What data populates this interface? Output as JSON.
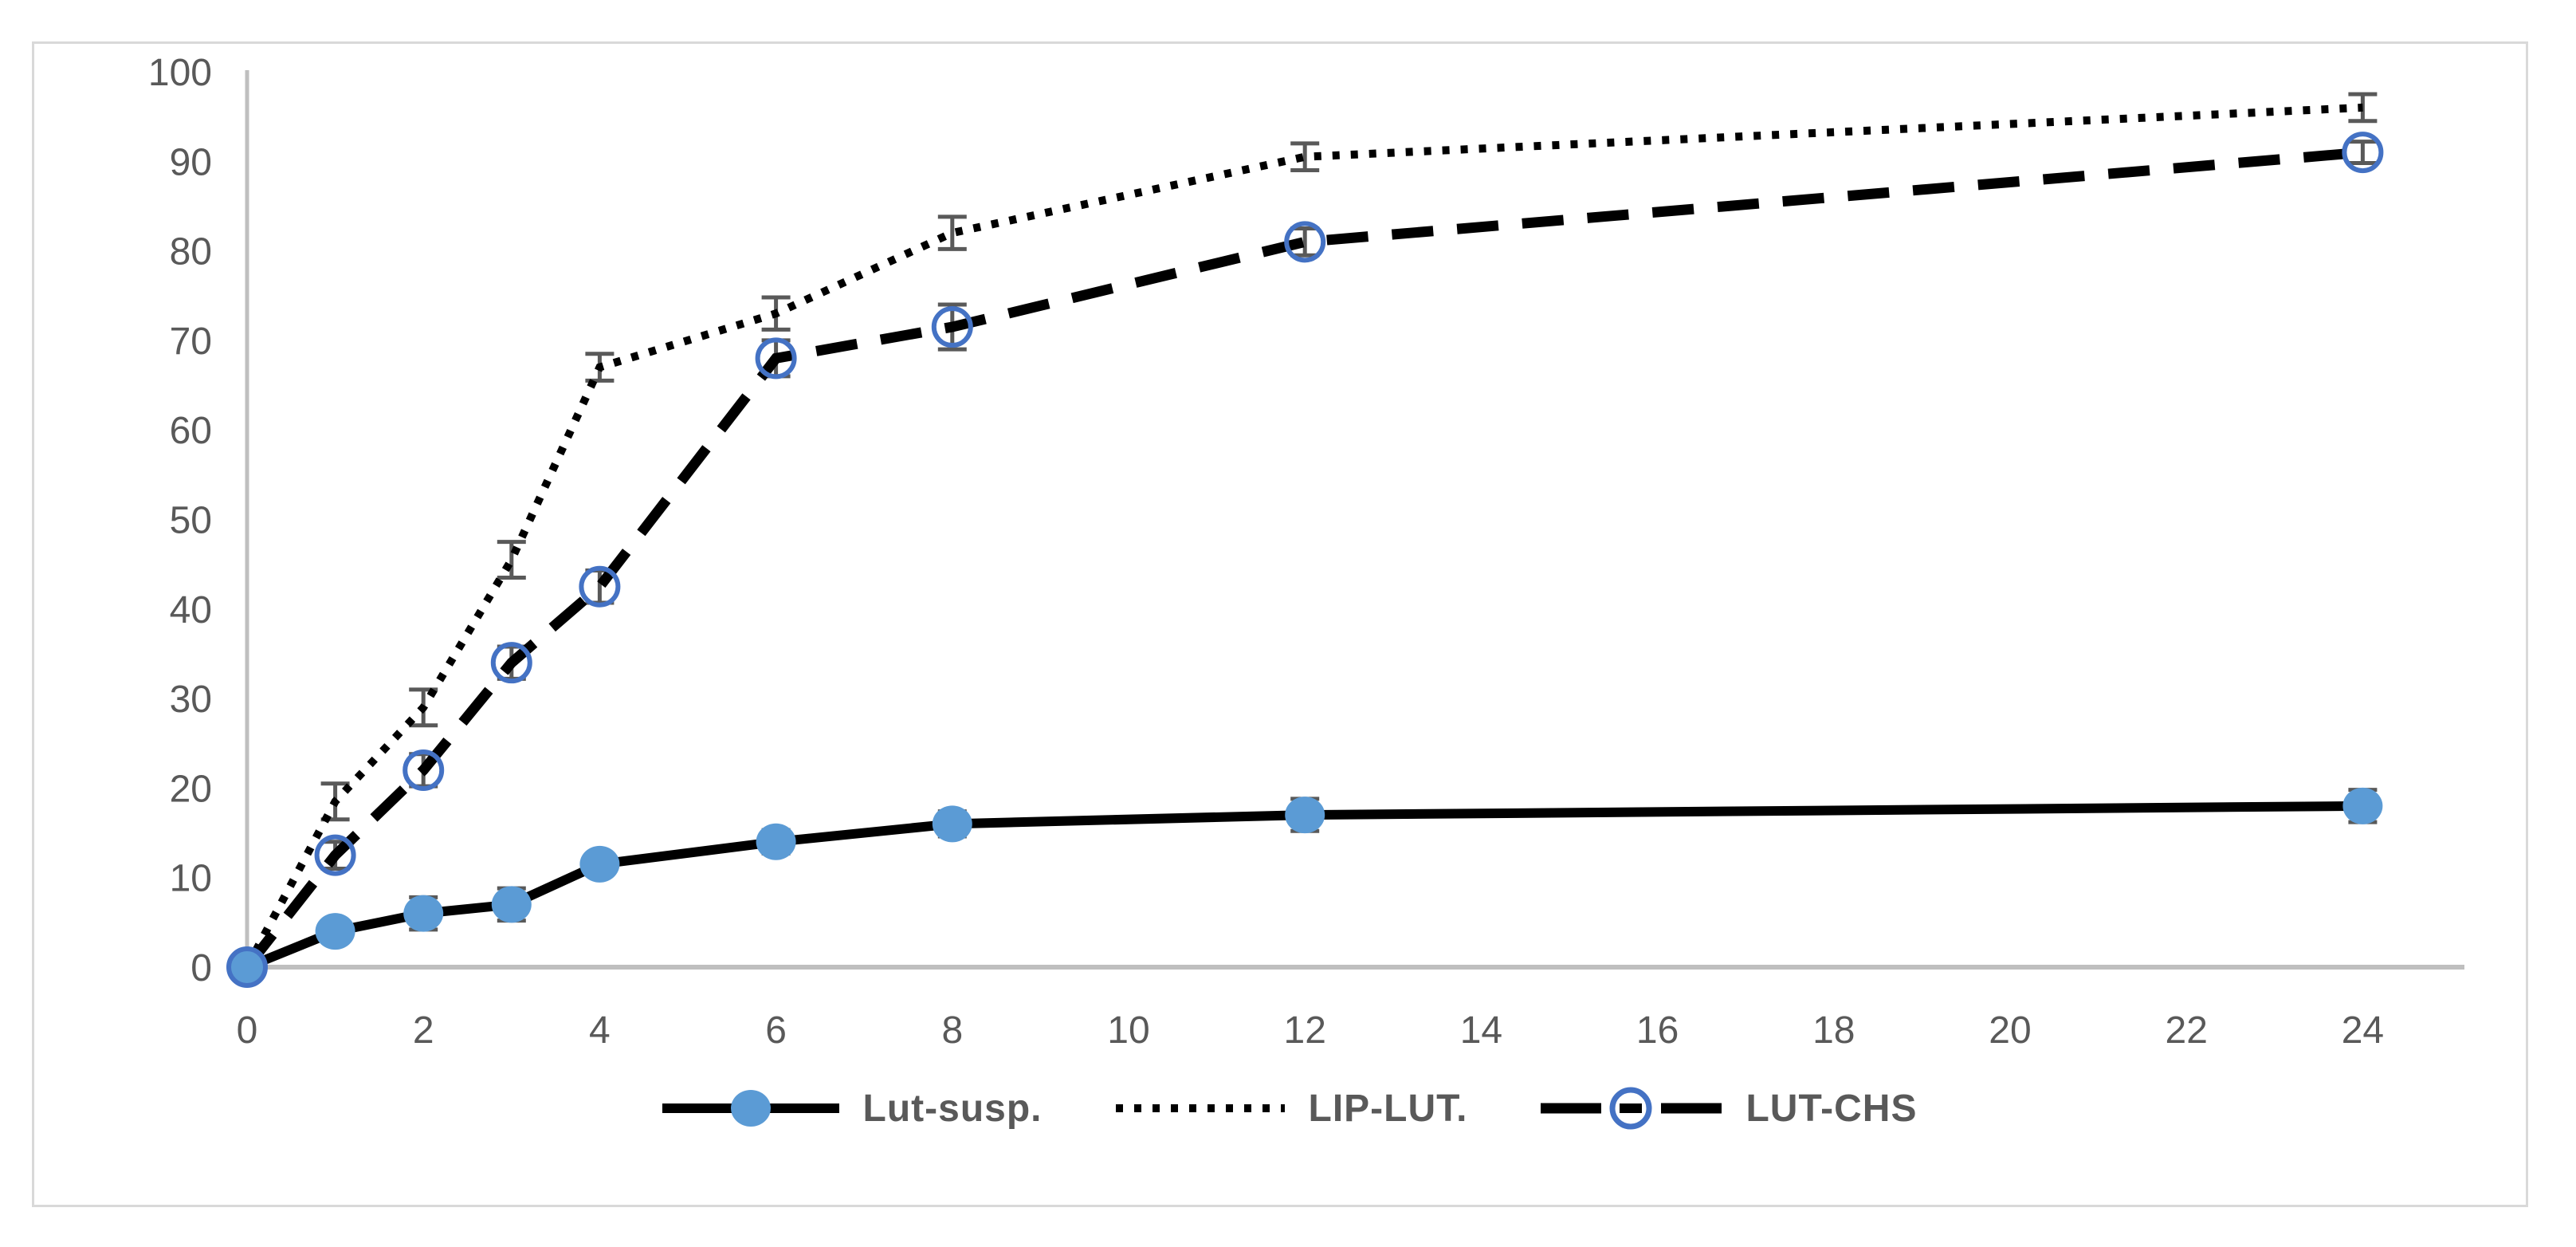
{
  "chart_data": {
    "type": "line",
    "title": "",
    "xlabel": "",
    "ylabel": "",
    "grid": false,
    "legend_position": "bottom",
    "x": [
      0,
      1,
      2,
      3,
      4,
      6,
      8,
      12,
      24
    ],
    "x_axis": {
      "min": 0,
      "max": 24,
      "ticks": [
        0,
        2,
        4,
        6,
        8,
        10,
        12,
        14,
        16,
        18,
        20,
        22,
        24
      ]
    },
    "y_axis": {
      "min": 0,
      "max": 100,
      "ticks": [
        0,
        10,
        20,
        30,
        40,
        50,
        60,
        70,
        80,
        90,
        100
      ]
    },
    "series": [
      {
        "name": "Lut-susp.",
        "line_style": "solid",
        "marker": "filled-circle",
        "line_color": "#000000",
        "marker_color": "#5b9bd5",
        "values": [
          0,
          4,
          6,
          7,
          11.5,
          14,
          16,
          17,
          18
        ],
        "error_bars": [
          0,
          0,
          1.8,
          1.8,
          0,
          1.3,
          1.4,
          1.8,
          1.8
        ]
      },
      {
        "name": "LIP-LUT.",
        "line_style": "dotted",
        "marker": "none",
        "line_color": "#000000",
        "marker_color": null,
        "values": [
          0,
          18.5,
          29,
          45.5,
          67,
          73,
          82,
          90.5,
          96
        ],
        "error_bars": [
          0,
          2,
          2,
          2,
          1.5,
          1.8,
          1.8,
          1.5,
          1.5
        ]
      },
      {
        "name": "LUT-CHS",
        "line_style": "dashed",
        "marker": "open-circle",
        "line_color": "#000000",
        "marker_color": "#4472c4",
        "values": [
          0,
          12.5,
          22,
          34,
          42.5,
          68,
          71.5,
          81,
          91
        ],
        "error_bars": [
          0,
          1.5,
          1.8,
          1.8,
          1.8,
          2,
          2.5,
          1.5,
          1.2
        ]
      }
    ],
    "colors": {
      "axis": "#bfbfbf",
      "tick_text": "#595959",
      "error_bar": "#595959",
      "frame_border": "#d9d9d9",
      "background": "#ffffff"
    }
  }
}
